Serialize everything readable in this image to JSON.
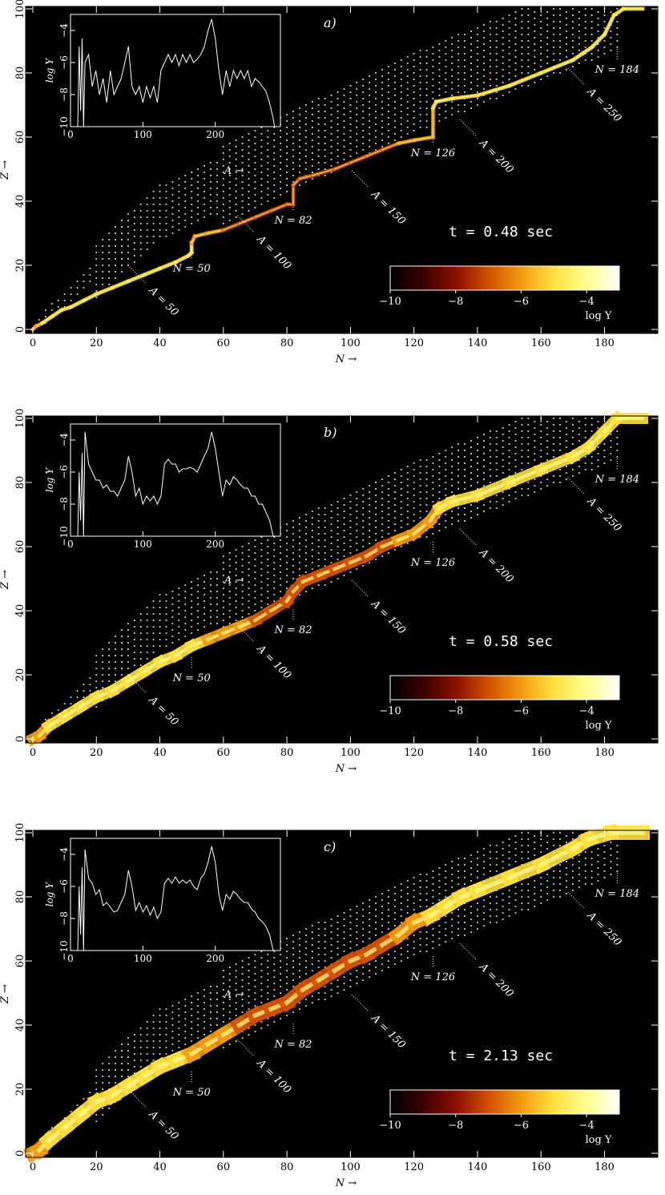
{
  "colors": {
    "background": "#000000",
    "stable_nuclei": "#ffffff",
    "colormap": [
      "#000000",
      "#3a0000",
      "#8a1000",
      "#d25000",
      "#f39a10",
      "#ffe040",
      "#ffff90",
      "#ffffff"
    ]
  },
  "chart_data": [
    {
      "panel": "a)",
      "type": "heatmap",
      "time_text": "t = 0.48 sec",
      "xlabel": "N →",
      "ylabel": "Z →",
      "xlim": [
        0,
        194
      ],
      "ylim": [
        0,
        100
      ],
      "x_ticks": [
        "0",
        "20",
        "40",
        "60",
        "80",
        "100",
        "120",
        "140",
        "160",
        "180"
      ],
      "y_ticks": [
        "0",
        "20",
        "40",
        "60",
        "80",
        "100"
      ],
      "colorbar": {
        "label": "log Y",
        "range": [
          -10,
          -3
        ],
        "ticks": [
          "−10",
          "−8",
          "−6",
          "−4"
        ]
      },
      "path_width": 1.2,
      "path": [
        [
          0,
          0
        ],
        [
          1,
          1
        ],
        [
          3,
          2
        ],
        [
          6,
          4
        ],
        [
          9,
          6
        ],
        [
          12,
          7
        ],
        [
          16,
          9
        ],
        [
          20,
          11
        ],
        [
          25,
          13
        ],
        [
          30,
          15
        ],
        [
          35,
          17
        ],
        [
          40,
          19
        ],
        [
          45,
          21
        ],
        [
          49,
          23
        ],
        [
          50,
          24
        ],
        [
          50,
          27
        ],
        [
          51,
          29
        ],
        [
          55,
          30
        ],
        [
          60,
          31
        ],
        [
          65,
          33
        ],
        [
          70,
          35
        ],
        [
          75,
          37
        ],
        [
          80,
          39
        ],
        [
          82,
          39
        ],
        [
          82,
          45
        ],
        [
          84,
          47
        ],
        [
          88,
          48
        ],
        [
          95,
          50
        ],
        [
          100,
          52
        ],
        [
          105,
          54
        ],
        [
          110,
          56
        ],
        [
          115,
          58
        ],
        [
          120,
          59
        ],
        [
          126,
          60
        ],
        [
          126,
          69
        ],
        [
          127,
          71
        ],
        [
          132,
          72
        ],
        [
          140,
          73
        ],
        [
          150,
          76
        ],
        [
          160,
          80
        ],
        [
          170,
          84
        ],
        [
          173,
          86
        ],
        [
          176,
          88
        ],
        [
          180,
          92
        ],
        [
          183,
          98
        ],
        [
          186,
          100
        ],
        [
          192,
          100
        ]
      ],
      "annotations": [
        {
          "text": "N = 50",
          "n": 50,
          "z": 24
        },
        {
          "text": "N = 82",
          "n": 82,
          "z": 39
        },
        {
          "text": "N = 126",
          "n": 126,
          "z": 60
        },
        {
          "text": "N = 184",
          "n": 184,
          "z": 86
        },
        {
          "text": "A = 50",
          "n": 34,
          "z": 16
        },
        {
          "text": "A = 100",
          "n": 68,
          "z": 32
        },
        {
          "text": "A = 150",
          "n": 104,
          "z": 46
        },
        {
          "text": "A = 200",
          "n": 138,
          "z": 62
        },
        {
          "text": "A = 250",
          "n": 172,
          "z": 78
        },
        {
          "text": "A →",
          "n": 30,
          "z": 46
        }
      ],
      "inset": {
        "xlabel": "",
        "ylabel": "log Y",
        "xlim": [
          0,
          290
        ],
        "ylim": [
          -10,
          -3
        ],
        "x_ticks": [
          "0",
          "100",
          "200"
        ],
        "y_ticks": [
          "−10",
          "−8",
          "−6",
          "−4"
        ],
        "x": [
          10,
          12,
          14,
          16,
          18,
          20,
          25,
          30,
          35,
          40,
          45,
          50,
          55,
          60,
          65,
          70,
          75,
          80,
          85,
          90,
          95,
          100,
          105,
          110,
          115,
          120,
          125,
          130,
          135,
          140,
          145,
          150,
          155,
          160,
          165,
          170,
          175,
          180,
          185,
          190,
          195,
          200,
          205,
          210,
          215,
          220,
          225,
          230,
          235,
          240,
          245,
          250,
          255,
          260,
          265,
          270,
          275,
          280,
          282,
          284
        ],
        "y": [
          -10,
          -5,
          -9,
          -4.5,
          -10,
          -6,
          -5.5,
          -7.5,
          -6.5,
          -8,
          -7,
          -8.5,
          -6.5,
          -8,
          -7.5,
          -7,
          -6,
          -5,
          -7.5,
          -8,
          -7.5,
          -8.5,
          -7.5,
          -8.2,
          -7.5,
          -8.5,
          -6.5,
          -6,
          -5.5,
          -6,
          -5.5,
          -6.2,
          -5.5,
          -6,
          -5.5,
          -6,
          -5.8,
          -5.5,
          -5,
          -4,
          -3.3,
          -4.5,
          -6.5,
          -8,
          -6.5,
          -7.5,
          -6.5,
          -7,
          -6.5,
          -7,
          -6.5,
          -7.5,
          -7,
          -7.2,
          -7.5,
          -7.8,
          -8.5,
          -9.5,
          -10,
          -10
        ]
      }
    },
    {
      "panel": "b)",
      "type": "heatmap",
      "time_text": "t = 0.58 sec",
      "xlabel": "N →",
      "ylabel": "Z →",
      "xlim": [
        0,
        194
      ],
      "ylim": [
        0,
        100
      ],
      "x_ticks": [
        "0",
        "20",
        "40",
        "60",
        "80",
        "100",
        "120",
        "140",
        "160",
        "180"
      ],
      "y_ticks": [
        "0",
        "20",
        "40",
        "60",
        "80",
        "100"
      ],
      "colorbar": {
        "label": "log Y",
        "range": [
          -10,
          -3
        ],
        "ticks": [
          "−10",
          "−8",
          "−6",
          "−4"
        ]
      },
      "path_width": 3.5,
      "path": [
        [
          0,
          0
        ],
        [
          2,
          1
        ],
        [
          5,
          4
        ],
        [
          10,
          7
        ],
        [
          15,
          10
        ],
        [
          20,
          13
        ],
        [
          25,
          15
        ],
        [
          30,
          18
        ],
        [
          35,
          21
        ],
        [
          40,
          24
        ],
        [
          45,
          26
        ],
        [
          50,
          29
        ],
        [
          55,
          31
        ],
        [
          60,
          33
        ],
        [
          65,
          35
        ],
        [
          70,
          37
        ],
        [
          75,
          40
        ],
        [
          80,
          43
        ],
        [
          82,
          46
        ],
        [
          85,
          49
        ],
        [
          90,
          51
        ],
        [
          95,
          53
        ],
        [
          100,
          55
        ],
        [
          105,
          57
        ],
        [
          110,
          60
        ],
        [
          115,
          62
        ],
        [
          120,
          64
        ],
        [
          125,
          68
        ],
        [
          128,
          72
        ],
        [
          132,
          74
        ],
        [
          140,
          76
        ],
        [
          150,
          80
        ],
        [
          160,
          84
        ],
        [
          170,
          88
        ],
        [
          175,
          91
        ],
        [
          180,
          96
        ],
        [
          184,
          100
        ],
        [
          192,
          100
        ]
      ],
      "annotations": [
        {
          "text": "N = 50",
          "n": 50,
          "z": 24
        },
        {
          "text": "N = 82",
          "n": 82,
          "z": 39
        },
        {
          "text": "N = 126",
          "n": 126,
          "z": 60
        },
        {
          "text": "N = 184",
          "n": 184,
          "z": 86
        },
        {
          "text": "A = 50",
          "n": 34,
          "z": 16
        },
        {
          "text": "A = 100",
          "n": 68,
          "z": 32
        },
        {
          "text": "A = 150",
          "n": 104,
          "z": 46
        },
        {
          "text": "A = 200",
          "n": 138,
          "z": 62
        },
        {
          "text": "A = 250",
          "n": 172,
          "z": 78
        },
        {
          "text": "A →",
          "n": 30,
          "z": 46
        }
      ],
      "inset": {
        "xlabel": "",
        "ylabel": "log Y",
        "xlim": [
          0,
          290
        ],
        "ylim": [
          -10,
          -3
        ],
        "x_ticks": [
          "0",
          "100",
          "200"
        ],
        "y_ticks": [
          "−10",
          "−8",
          "−6",
          "−4"
        ],
        "x": [
          10,
          12,
          14,
          16,
          18,
          20,
          25,
          30,
          35,
          40,
          45,
          50,
          55,
          60,
          65,
          70,
          75,
          80,
          85,
          90,
          95,
          100,
          105,
          110,
          115,
          120,
          125,
          130,
          135,
          140,
          145,
          150,
          155,
          160,
          165,
          170,
          175,
          180,
          185,
          190,
          195,
          200,
          205,
          210,
          215,
          220,
          225,
          230,
          235,
          240,
          245,
          250,
          255,
          260,
          265,
          270,
          275,
          280,
          282,
          284
        ],
        "y": [
          -10,
          -6,
          -9,
          -4.8,
          -10,
          -3.5,
          -5.5,
          -6,
          -6.5,
          -6.5,
          -7,
          -6.8,
          -7.2,
          -7.2,
          -7.5,
          -7,
          -6.5,
          -5,
          -6,
          -7.5,
          -7,
          -8,
          -7.5,
          -7.8,
          -7.5,
          -8,
          -7.5,
          -5.5,
          -5.2,
          -5.5,
          -5.5,
          -6,
          -5.8,
          -5.8,
          -5.7,
          -5.8,
          -6,
          -5.5,
          -5,
          -4.5,
          -3.5,
          -4.5,
          -6,
          -7.5,
          -6.5,
          -6.8,
          -6.3,
          -6.5,
          -6.8,
          -7,
          -7,
          -7.5,
          -7.5,
          -8,
          -8,
          -8.5,
          -9,
          -10,
          -10,
          -10
        ]
      }
    },
    {
      "panel": "c)",
      "type": "heatmap",
      "time_text": "t = 2.13 sec",
      "xlabel": "N →",
      "ylabel": "Z →",
      "xlim": [
        0,
        194
      ],
      "ylim": [
        0,
        100
      ],
      "x_ticks": [
        "0",
        "20",
        "40",
        "60",
        "80",
        "100",
        "120",
        "140",
        "160",
        "180"
      ],
      "y_ticks": [
        "0",
        "20",
        "40",
        "60",
        "80",
        "100"
      ],
      "colorbar": {
        "label": "log Y",
        "range": [
          -10,
          -3
        ],
        "ticks": [
          "−10",
          "−8",
          "−6",
          "−4"
        ]
      },
      "path_width": 4.5,
      "path": [
        [
          0,
          0
        ],
        [
          2,
          1
        ],
        [
          5,
          4
        ],
        [
          10,
          8
        ],
        [
          15,
          12
        ],
        [
          20,
          16
        ],
        [
          25,
          18
        ],
        [
          30,
          21
        ],
        [
          35,
          24
        ],
        [
          40,
          27
        ],
        [
          45,
          29
        ],
        [
          50,
          31
        ],
        [
          55,
          34
        ],
        [
          60,
          37
        ],
        [
          65,
          40
        ],
        [
          70,
          43
        ],
        [
          75,
          45
        ],
        [
          80,
          47
        ],
        [
          85,
          51
        ],
        [
          90,
          54
        ],
        [
          95,
          57
        ],
        [
          100,
          60
        ],
        [
          105,
          62
        ],
        [
          110,
          65
        ],
        [
          115,
          68
        ],
        [
          120,
          72
        ],
        [
          125,
          74
        ],
        [
          130,
          77
        ],
        [
          135,
          80
        ],
        [
          140,
          82
        ],
        [
          150,
          86
        ],
        [
          160,
          90
        ],
        [
          170,
          95
        ],
        [
          175,
          98
        ],
        [
          182,
          100
        ],
        [
          192,
          100
        ]
      ],
      "annotations": [
        {
          "text": "N = 50",
          "n": 50,
          "z": 24
        },
        {
          "text": "N = 82",
          "n": 82,
          "z": 39
        },
        {
          "text": "N = 126",
          "n": 126,
          "z": 60
        },
        {
          "text": "N = 184",
          "n": 184,
          "z": 86
        },
        {
          "text": "A = 50",
          "n": 34,
          "z": 16
        },
        {
          "text": "A = 100",
          "n": 68,
          "z": 32
        },
        {
          "text": "A = 150",
          "n": 104,
          "z": 46
        },
        {
          "text": "A = 200",
          "n": 138,
          "z": 62
        },
        {
          "text": "A = 250",
          "n": 172,
          "z": 78
        },
        {
          "text": "A →",
          "n": 30,
          "z": 46
        }
      ],
      "inset": {
        "xlabel": "",
        "ylabel": "log Y",
        "xlim": [
          0,
          290
        ],
        "ylim": [
          -10,
          -3
        ],
        "x_ticks": [
          "0",
          "100",
          "200"
        ],
        "y_ticks": [
          "−10",
          "−8",
          "−6",
          "−4"
        ],
        "x": [
          10,
          12,
          14,
          16,
          18,
          20,
          25,
          30,
          35,
          40,
          45,
          50,
          55,
          60,
          65,
          70,
          75,
          80,
          85,
          90,
          95,
          100,
          105,
          110,
          115,
          120,
          125,
          130,
          135,
          140,
          145,
          150,
          155,
          160,
          165,
          170,
          175,
          180,
          185,
          190,
          195,
          200,
          205,
          210,
          215,
          220,
          225,
          230,
          235,
          240,
          245,
          250,
          255,
          260,
          265,
          270,
          275,
          280,
          282,
          284
        ],
        "y": [
          -10,
          -6,
          -9,
          -4.8,
          -10,
          -3.7,
          -5.5,
          -5.8,
          -6.5,
          -6.2,
          -7.2,
          -7,
          -7.3,
          -7.6,
          -7.5,
          -7,
          -6.5,
          -5,
          -6,
          -7.5,
          -7,
          -7.6,
          -7.2,
          -7.8,
          -7.3,
          -8,
          -7.6,
          -5.8,
          -5.5,
          -5.8,
          -5.4,
          -5.8,
          -5.6,
          -5.8,
          -5.6,
          -6,
          -6.2,
          -5.5,
          -5.2,
          -4.5,
          -3.5,
          -4.5,
          -6.5,
          -7.5,
          -6.5,
          -6.8,
          -6.3,
          -6.5,
          -6.8,
          -7,
          -7,
          -7.4,
          -7.6,
          -8,
          -8.2,
          -8.5,
          -9,
          -10,
          -10,
          -10
        ]
      }
    }
  ]
}
